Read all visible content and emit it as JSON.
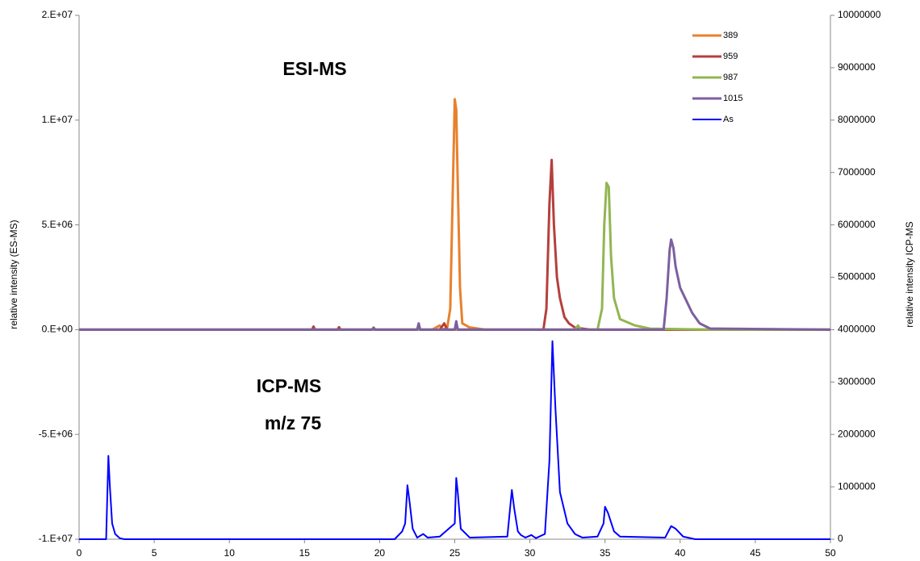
{
  "chart_data": {
    "type": "line",
    "annotations": [
      "ESI-MS",
      "ICP-MS",
      "m/z 75"
    ],
    "ylabel": "relative  intensity (ES-MS)",
    "y2label": "relative  intensity ICP-MS",
    "xlim": [
      0,
      50
    ],
    "xticks": [
      0,
      5,
      10,
      15,
      20,
      25,
      30,
      35,
      40,
      45,
      50
    ],
    "ylim": [
      -10000000,
      15000000
    ],
    "yticks": [
      {
        "value": -10000000,
        "label": "-1.E+07"
      },
      {
        "value": -5000000,
        "label": "-5.E+06"
      },
      {
        "value": 0,
        "label": "0.E+00"
      },
      {
        "value": 5000000,
        "label": "5.E+06"
      },
      {
        "value": 10000000,
        "label": "1.E+07"
      },
      {
        "value": 15000000,
        "label": "2.E+07"
      }
    ],
    "y2lim": [
      0,
      10000000
    ],
    "y2ticks": [
      0,
      1000000,
      2000000,
      3000000,
      4000000,
      5000000,
      6000000,
      7000000,
      8000000,
      9000000,
      10000000
    ],
    "grid": false,
    "legend": "upper right",
    "series": [
      {
        "name": "389",
        "color": "#e8812e",
        "x": [
          0,
          15.5,
          15.6,
          15.7,
          23.5,
          24,
          24.2,
          24.5,
          24.7,
          24.85,
          25,
          25.1,
          25.2,
          25.35,
          25.5,
          26,
          26.1,
          27,
          50
        ],
        "values": [
          0,
          0,
          100000,
          0,
          0,
          200000,
          0,
          100000,
          1000000,
          6000000,
          11000000,
          10500000,
          7000000,
          2000000,
          300000,
          100000,
          100000,
          0,
          0
        ]
      },
      {
        "name": "959",
        "color": "#b5403d",
        "x": [
          0,
          15.5,
          15.6,
          15.7,
          17.2,
          17.3,
          17.4,
          24,
          24.3,
          24.5,
          25,
          30.9,
          31.1,
          31.3,
          31.45,
          31.6,
          31.8,
          32,
          32.3,
          32.6,
          33,
          34,
          50
        ],
        "values": [
          0,
          0,
          150000,
          0,
          0,
          120000,
          0,
          0,
          300000,
          0,
          0,
          0,
          1000000,
          6000000,
          8100000,
          5000000,
          2500000,
          1500000,
          600000,
          300000,
          100000,
          0,
          0
        ]
      },
      {
        "name": "987",
        "color": "#92b552",
        "x": [
          0,
          33,
          33.2,
          33.4,
          34.5,
          34.8,
          34.95,
          35.1,
          35.25,
          35.4,
          35.6,
          36,
          37,
          38,
          42,
          50
        ],
        "values": [
          0,
          0,
          200000,
          0,
          0,
          1000000,
          5000000,
          7000000,
          6800000,
          3500000,
          1500000,
          500000,
          200000,
          50000,
          0,
          0
        ]
      },
      {
        "name": "1015",
        "color": "#7d5f9f",
        "x": [
          0,
          19.5,
          19.6,
          19.7,
          22.5,
          22.6,
          22.7,
          25,
          25.1,
          25.2,
          38.9,
          39.1,
          39.3,
          39.4,
          39.55,
          39.7,
          40,
          40.4,
          40.8,
          41.3,
          42,
          50
        ],
        "values": [
          0,
          0,
          100000,
          0,
          0,
          300000,
          0,
          0,
          400000,
          0,
          0,
          1500000,
          3800000,
          4300000,
          3900000,
          3000000,
          2000000,
          1400000,
          800000,
          300000,
          50000,
          0
        ]
      },
      {
        "name": "As",
        "color": "#0000ff",
        "axis": "y2",
        "x": [
          0,
          1.8,
          1.95,
          2.05,
          2.2,
          2.4,
          2.7,
          3,
          21,
          21.5,
          21.7,
          21.85,
          22,
          22.2,
          22.5,
          22.9,
          23.2,
          24,
          25,
          25.1,
          25.2,
          25.4,
          26,
          28.5,
          28.8,
          28.95,
          29.2,
          29.4,
          29.7,
          30.1,
          30.4,
          31,
          31.3,
          31.5,
          31.7,
          32,
          32.5,
          33,
          33.2,
          33.5,
          34.5,
          34.9,
          35,
          35.2,
          35.6,
          36,
          39,
          39.4,
          39.7,
          40.2,
          41,
          50
        ],
        "values": [
          0,
          0,
          1590000,
          1000000,
          300000,
          100000,
          20000,
          0,
          0,
          150000,
          300000,
          1030000,
          700000,
          200000,
          30000,
          100000,
          30000,
          50000,
          300000,
          1170000,
          900000,
          200000,
          30000,
          50000,
          940000,
          600000,
          150000,
          80000,
          30000,
          80000,
          20000,
          100000,
          1500000,
          3780000,
          2500000,
          900000,
          300000,
          100000,
          70000,
          30000,
          50000,
          300000,
          620000,
          500000,
          150000,
          50000,
          30000,
          250000,
          200000,
          50000,
          0,
          0
        ]
      }
    ]
  }
}
